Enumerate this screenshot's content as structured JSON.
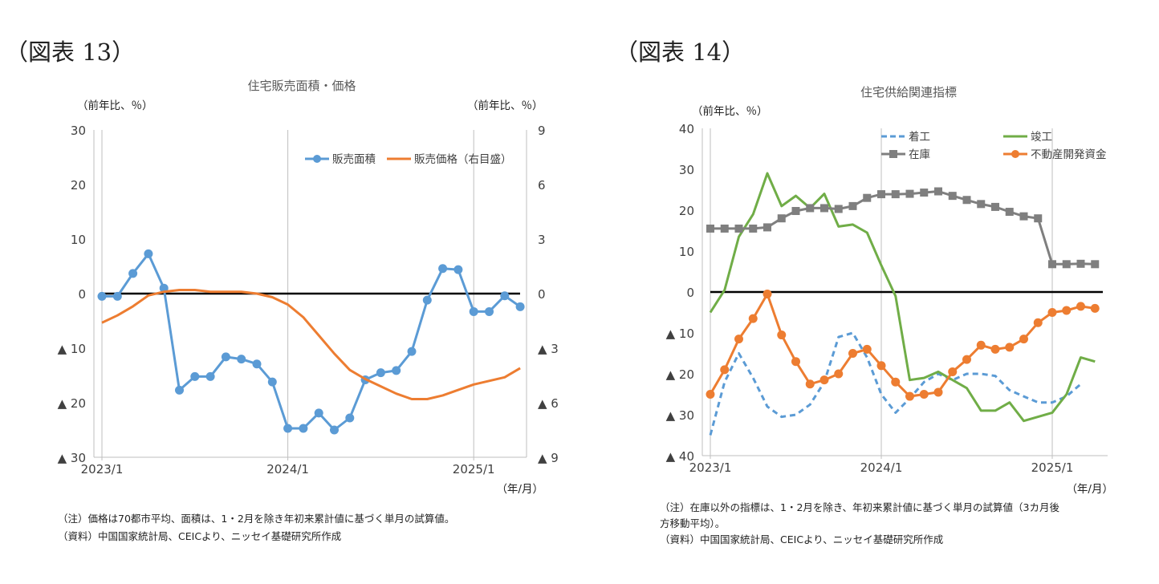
{
  "fig13": {
    "label": "（図表 13）",
    "note1": "（注）価格は70都市平均、面積は、1・2月を除き年初来累計値に基づく単月の試算値。",
    "note2": "（資料）中国国家統計局、CEICより、ニッセイ基礎研究所作成"
  },
  "fig14": {
    "label": "（図表 14）",
    "note1": "（注）在庫以外の指標は、1・2月を除き、年初来累計値に基づく単月の試算値（3カ月後",
    "note2": "方移動平均）。",
    "note3": "（資料）中国国家統計局、CEICより、ニッセイ基礎研究所作成"
  },
  "chart_data": [
    {
      "type": "line",
      "title": "住宅販売面積・価格",
      "ylabel": "（前年比、％）",
      "y2label": "（前年比、％）",
      "xlabel": "（年/月）",
      "ylim": [
        -30,
        30
      ],
      "y2lim": [
        9,
        -9
      ],
      "yticks": [
        30,
        20,
        10,
        0,
        -10,
        -20,
        -30
      ],
      "ytick_labels": [
        "30",
        "20",
        "10",
        "0",
        "▲ 10",
        "▲ 20",
        "▲ 30"
      ],
      "y2ticks": [
        9,
        6,
        3,
        0,
        -3,
        -6,
        -9
      ],
      "y2tick_labels": [
        "9",
        "6",
        "3",
        "0",
        "▲ 3",
        "▲ 6",
        "▲ 9"
      ],
      "x_categories": [
        "2023/1",
        "2023/2",
        "2023/3",
        "2023/4",
        "2023/5",
        "2023/6",
        "2023/7",
        "2023/8",
        "2023/9",
        "2023/10",
        "2023/11",
        "2023/12",
        "2024/1",
        "2024/2",
        "2024/3",
        "2024/4",
        "2024/5",
        "2024/6",
        "2024/7",
        "2024/8",
        "2024/9",
        "2024/10",
        "2024/11",
        "2024/12",
        "2025/1",
        "2025/2",
        "2025/3",
        "2025/4"
      ],
      "xtick_labels": [
        {
          "i": 0,
          "label": "2023/1"
        },
        {
          "i": 12,
          "label": "2024/1"
        },
        {
          "i": 24,
          "label": "2025/1"
        }
      ],
      "legend_position": "top-right",
      "grid": false,
      "zero_line": true,
      "series": [
        {
          "name": "販売面積",
          "axis": "left",
          "color": "#5B9BD5",
          "marker": "circle",
          "values": [
            -0.5,
            -0.5,
            3.7,
            7.3,
            1.0,
            -17.7,
            -15.2,
            -15.2,
            -11.6,
            -12.0,
            -12.9,
            -16.2,
            -24.7,
            -24.7,
            -21.9,
            -25.0,
            -22.8,
            -15.8,
            -14.5,
            -14.1,
            -10.6,
            -1.2,
            4.6,
            4.4,
            -3.3,
            -3.3,
            -0.4,
            -2.4
          ]
        },
        {
          "name": "販売価格（右目盛）",
          "axis": "right",
          "color": "#ED7D31",
          "marker": "none",
          "values": [
            -1.6,
            -1.2,
            -0.7,
            -0.1,
            0.1,
            0.2,
            0.2,
            0.1,
            0.1,
            0.1,
            0.0,
            -0.2,
            -0.6,
            -1.3,
            -2.3,
            -3.3,
            -4.2,
            -4.7,
            -5.1,
            -5.5,
            -5.8,
            -5.8,
            -5.6,
            -5.3,
            -5.0,
            -4.8,
            -4.6,
            -4.1
          ]
        }
      ]
    },
    {
      "type": "line",
      "title": "住宅供給関連指標",
      "ylabel": "（前年比、％）",
      "xlabel": "（年/月）",
      "ylim": [
        -40,
        40
      ],
      "yticks": [
        40,
        30,
        20,
        10,
        0,
        -10,
        -20,
        -30,
        -40
      ],
      "ytick_labels": [
        "40",
        "30",
        "20",
        "10",
        "0",
        "▲ 10",
        "▲ 20",
        "▲ 30",
        "▲ 40"
      ],
      "x_categories": [
        "2023/1",
        "2023/2",
        "2023/3",
        "2023/4",
        "2023/5",
        "2023/6",
        "2023/7",
        "2023/8",
        "2023/9",
        "2023/10",
        "2023/11",
        "2023/12",
        "2024/1",
        "2024/2",
        "2024/3",
        "2024/4",
        "2024/5",
        "2024/6",
        "2024/7",
        "2024/8",
        "2024/9",
        "2024/10",
        "2024/11",
        "2024/12",
        "2025/1",
        "2025/2",
        "2025/3",
        "2025/4",
        "2025/5"
      ],
      "xtick_labels": [
        {
          "i": 0,
          "label": "2023/1"
        },
        {
          "i": 12,
          "label": "2024/1"
        },
        {
          "i": 24,
          "label": "2025/1"
        }
      ],
      "legend_position": "top-right",
      "grid": false,
      "zero_line": true,
      "series": [
        {
          "name": "着工",
          "color": "#5B9BD5",
          "dash": true,
          "marker": "none",
          "values": [
            -35,
            -22,
            -15,
            -21,
            -28,
            -30.5,
            -30,
            -27.5,
            -22,
            -11,
            -10,
            -16,
            -25,
            -29.5,
            -26,
            -22,
            -20,
            -21.5,
            -20,
            -20,
            -20.5,
            -24,
            -25.5,
            -27,
            -27,
            -25.5,
            -22.5
          ]
        },
        {
          "name": "竣工",
          "color": "#70AD47",
          "dash": false,
          "marker": "none",
          "values": [
            -5,
            0.5,
            13.5,
            19,
            29,
            21,
            23.5,
            20.5,
            24,
            16,
            16.5,
            14.5,
            6.5,
            -1,
            -21.5,
            -21,
            -19.5,
            -21.5,
            -23.5,
            -29,
            -29,
            -27,
            -31.5,
            -30.5,
            -29.5,
            -25,
            -16,
            -17
          ]
        },
        {
          "name": "在庫",
          "color": "#7F7F7F",
          "dash": false,
          "marker": "square",
          "values": [
            15.5,
            15.5,
            15.5,
            15.5,
            15.8,
            18,
            19.8,
            20.5,
            20.5,
            20.3,
            21,
            23,
            23.9,
            23.9,
            24,
            24.3,
            24.6,
            23.5,
            22.5,
            21.5,
            20.8,
            19.6,
            18.5,
            18,
            6.8,
            6.8,
            6.9,
            6.8
          ]
        },
        {
          "name": "不動産開発資金",
          "color": "#ED7D31",
          "dash": false,
          "marker": "circle",
          "values": [
            -25,
            -19,
            -11.5,
            -6.5,
            -0.5,
            -10.5,
            -17,
            -22.5,
            -21.5,
            -20,
            -15,
            -14,
            -18,
            -22,
            -25.5,
            -25,
            -24.5,
            -19.5,
            -16.5,
            -13,
            -14,
            -13.5,
            -11.5,
            -7.5,
            -5,
            -4.5,
            -3.5,
            -4
          ]
        }
      ]
    }
  ]
}
